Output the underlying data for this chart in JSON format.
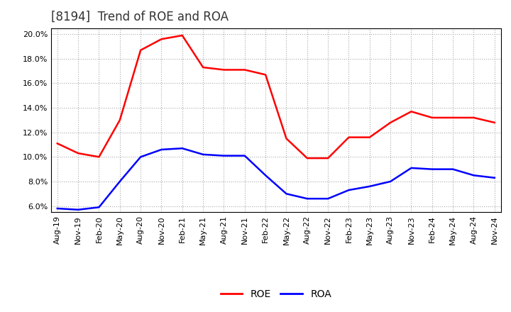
{
  "title": "[8194]  Trend of ROE and ROA",
  "x_labels": [
    "Aug-19",
    "Nov-19",
    "Feb-20",
    "May-20",
    "Aug-20",
    "Nov-20",
    "Feb-21",
    "May-21",
    "Aug-21",
    "Nov-21",
    "Feb-22",
    "May-22",
    "Aug-22",
    "Nov-22",
    "Feb-23",
    "May-23",
    "Aug-23",
    "Nov-23",
    "Feb-24",
    "May-24",
    "Aug-24",
    "Nov-24"
  ],
  "roe_values": [
    11.1,
    10.3,
    10.0,
    13.0,
    18.7,
    19.6,
    19.9,
    17.3,
    17.1,
    17.1,
    16.7,
    11.5,
    9.9,
    9.9,
    11.6,
    11.6,
    12.8,
    13.7,
    13.2,
    13.2,
    13.2,
    12.8
  ],
  "roa_values": [
    5.8,
    5.7,
    5.9,
    8.0,
    10.0,
    10.6,
    10.7,
    10.2,
    10.1,
    10.1,
    8.5,
    7.0,
    6.6,
    6.6,
    7.3,
    7.6,
    8.0,
    9.1,
    9.0,
    9.0,
    8.5,
    8.3
  ],
  "ylim": [
    5.5,
    20.5
  ],
  "yticks": [
    6.0,
    8.0,
    10.0,
    12.0,
    14.0,
    16.0,
    18.0,
    20.0
  ],
  "roe_color": "#FF0000",
  "roa_color": "#0000FF",
  "bg_color": "#FFFFFF",
  "plot_bg_color": "#FFFFFF",
  "grid_color": "#AAAAAA",
  "title_fontsize": 12,
  "tick_fontsize": 8,
  "legend_fontsize": 10
}
